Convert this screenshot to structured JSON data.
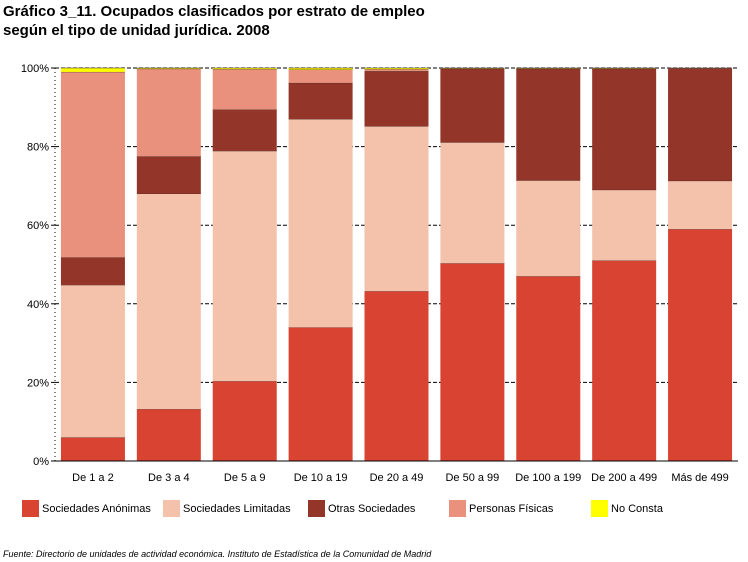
{
  "title": {
    "line1": "Gráfico 3_11. Ocupados clasificados por estrato de empleo",
    "line2": "según el tipo de unidad jurídica. 2008"
  },
  "source": "Fuente: Directorio de unidades de actividad económica. Instituto de Estadística de la Comunidad de Madrid",
  "chart_data": {
    "type": "bar",
    "stacked": true,
    "percent": true,
    "categories": [
      "De 1 a 2",
      "De 3 a 4",
      "De 5 a 9",
      "De 10 a 19",
      "De 20 a 49",
      "De 50 a 99",
      "De 100 a 199",
      "De 200 a 499",
      "Más de 499"
    ],
    "y_ticks": [
      "0%",
      "20%",
      "40%",
      "60%",
      "80%",
      "100%"
    ],
    "ylim": [
      0,
      100
    ],
    "grid": true,
    "legend_position": "bottom",
    "series": [
      {
        "name": "Sociedades Anónimas",
        "color": "#d94332",
        "values": [
          6,
          13.2,
          20.3,
          34,
          43.2,
          50.3,
          47,
          51,
          59
        ]
      },
      {
        "name": "Sociedades Limitadas",
        "color": "#f4c1aa",
        "values": [
          38.8,
          54.8,
          58.6,
          53,
          42,
          30.8,
          24.4,
          18,
          12.3
        ]
      },
      {
        "name": "Otras Sociedades",
        "color": "#94352a",
        "values": [
          7,
          9.5,
          10.5,
          9.2,
          14,
          18.7,
          28.4,
          30.8,
          28.6
        ]
      },
      {
        "name": "Personas Físicas",
        "color": "#e9917c",
        "values": [
          47.2,
          22.3,
          10.3,
          3.4,
          0.5,
          0.1,
          0.1,
          0.1,
          0.1
        ]
      },
      {
        "name": "No Consta",
        "color": "#ffff00",
        "values": [
          1,
          0.2,
          0.3,
          0.4,
          0.3,
          0.1,
          0.1,
          0.1,
          0
        ]
      }
    ]
  }
}
